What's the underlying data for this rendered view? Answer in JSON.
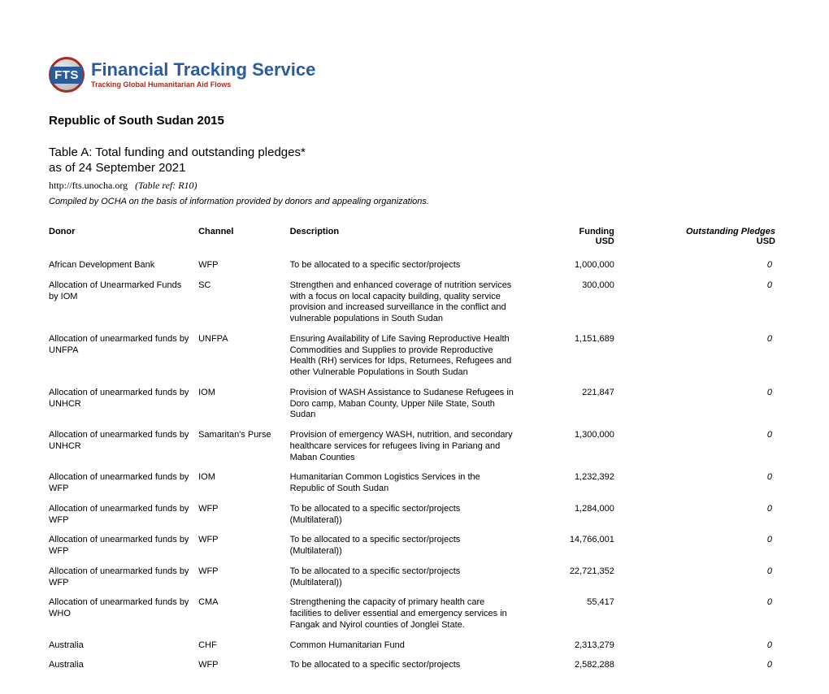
{
  "logo": {
    "badge": "FTS",
    "title": "Financial Tracking Service",
    "subtitle": "Tracking Global Humanitarian Aid Flows"
  },
  "header": {
    "country_title": "Republic of South Sudan 2015",
    "table_title": "Table A: Total funding and outstanding pledges*",
    "as_of": "as of 24 September 2021",
    "url": "http://fts.unocha.org",
    "table_ref_label": "(Table ref: R10)",
    "compiled": "Compiled by OCHA on the basis of information provided by donors and appealing organizations."
  },
  "columns": {
    "donor": "Donor",
    "channel": "Channel",
    "description": "Description",
    "funding": "Funding",
    "funding_sub": "USD",
    "pledges": "Outstanding Pledges",
    "pledges_sub": "USD"
  },
  "rows": [
    {
      "donor": "African Development Bank",
      "channel": "WFP",
      "description": "To be allocated to a specific sector/projects",
      "funding": "1,000,000",
      "pledges": "0"
    },
    {
      "donor": "Allocation of Unearmarked Funds by IOM",
      "channel": "SC",
      "description": "Strengthen and enhanced coverage of nutrition services with a focus on local capacity building, quality service provision and increased surveillance in the conflict and vulnerable populations in South Sudan",
      "funding": "300,000",
      "pledges": "0"
    },
    {
      "donor": "Allocation of unearmarked funds by UNFPA",
      "channel": "UNFPA",
      "description": "Ensuring Availability of Life Saving Reproductive Health Commodities and Supplies to provide Reproductive Health (RH) services for Idps, Returnees, Refugees and other Vulnerable Populations in South Sudan",
      "funding": "1,151,689",
      "pledges": "0"
    },
    {
      "donor": "Allocation of unearmarked funds by UNHCR",
      "channel": "IOM",
      "description": "Provision of WASH Assistance to Sudanese Refugees in Doro camp, Maban County, Upper Nile State, South Sudan",
      "funding": "221,847",
      "pledges": "0"
    },
    {
      "donor": "Allocation of unearmarked funds by UNHCR",
      "channel": "Samaritan's Purse",
      "description": "Provision of emergency WASH, nutrition, and secondary healthcare services for refugees living in Pariang and Maban Counties",
      "funding": "1,300,000",
      "pledges": "0"
    },
    {
      "donor": "Allocation of unearmarked funds by WFP",
      "channel": "IOM",
      "description": "Humanitarian Common Logistics Services in the Republic of South Sudan",
      "funding": "1,232,392",
      "pledges": "0"
    },
    {
      "donor": "Allocation of unearmarked funds by WFP",
      "channel": "WFP",
      "description": "To be allocated to a specific sector/projects (Multilateral))",
      "funding": "1,284,000",
      "pledges": "0"
    },
    {
      "donor": "Allocation of unearmarked funds by WFP",
      "channel": "WFP",
      "description": "To be allocated to a specific sector/projects (Multilateral))",
      "funding": "14,766,001",
      "pledges": "0"
    },
    {
      "donor": "Allocation of unearmarked funds by WFP",
      "channel": "WFP",
      "description": "To be allocated to a specific sector/projects (Multilateral))",
      "funding": "22,721,352",
      "pledges": "0"
    },
    {
      "donor": "Allocation of unearmarked funds by WHO",
      "channel": "CMA",
      "description": "Strengthening the capacity of primary health care facilities to deliver essential and emergency services in Fangak and Nyirol counties of Jonglei State.",
      "funding": "55,417",
      "pledges": "0"
    },
    {
      "donor": "Australia",
      "channel": "CHF",
      "description": "Common Humanitarian Fund",
      "funding": "2,313,279",
      "pledges": "0"
    },
    {
      "donor": "Australia",
      "channel": "WFP",
      "description": "To be allocated to a specific sector/projects",
      "funding": "2,582,288",
      "pledges": "0"
    }
  ]
}
